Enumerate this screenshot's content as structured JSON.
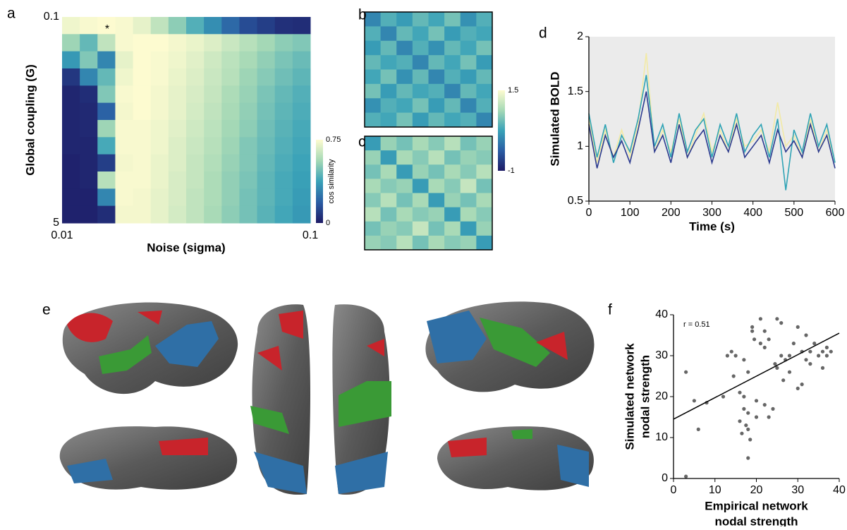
{
  "panel_e": {
    "label": "e"
  },
  "chart_data": [
    {
      "type": "heatmap",
      "panel": "a",
      "xlabel": "Noise (sigma)",
      "ylabel": "Global coupling (G)",
      "annotation": "*",
      "xlim": [
        0.01,
        0.1
      ],
      "xticks": [
        0.01,
        0.1
      ],
      "xlog": true,
      "ylim": [
        0.1,
        5
      ],
      "yticks": [
        0.1,
        5
      ],
      "clim": [
        0,
        0.75
      ],
      "colormap": [
        "#1e1b66",
        "#2a5da4",
        "#39a2b8",
        "#a5d9b6",
        "#fdfbd0"
      ],
      "colorbar": {
        "label": "cos similarity",
        "ticks": [
          0.75,
          0
        ]
      },
      "z": [
        [
          0.72,
          0.74,
          0.75,
          0.74,
          0.7,
          0.62,
          0.52,
          0.42,
          0.32,
          0.22,
          0.14,
          0.1,
          0.06,
          0.05
        ],
        [
          0.55,
          0.45,
          0.62,
          0.74,
          0.75,
          0.75,
          0.73,
          0.71,
          0.68,
          0.64,
          0.6,
          0.56,
          0.52,
          0.5
        ],
        [
          0.35,
          0.5,
          0.3,
          0.7,
          0.75,
          0.74,
          0.72,
          0.69,
          0.65,
          0.61,
          0.57,
          0.53,
          0.49,
          0.46
        ],
        [
          0.08,
          0.3,
          0.45,
          0.72,
          0.75,
          0.74,
          0.71,
          0.68,
          0.64,
          0.6,
          0.55,
          0.51,
          0.47,
          0.44
        ],
        [
          0.03,
          0.05,
          0.5,
          0.74,
          0.75,
          0.73,
          0.7,
          0.67,
          0.63,
          0.58,
          0.54,
          0.49,
          0.45,
          0.42
        ],
        [
          0.03,
          0.04,
          0.2,
          0.73,
          0.75,
          0.73,
          0.7,
          0.66,
          0.62,
          0.57,
          0.53,
          0.48,
          0.44,
          0.41
        ],
        [
          0.03,
          0.04,
          0.55,
          0.74,
          0.74,
          0.72,
          0.69,
          0.65,
          0.61,
          0.56,
          0.52,
          0.47,
          0.43,
          0.4
        ],
        [
          0.03,
          0.03,
          0.4,
          0.74,
          0.74,
          0.72,
          0.68,
          0.64,
          0.6,
          0.55,
          0.5,
          0.46,
          0.42,
          0.39
        ],
        [
          0.02,
          0.03,
          0.1,
          0.73,
          0.74,
          0.71,
          0.68,
          0.63,
          0.59,
          0.54,
          0.5,
          0.45,
          0.41,
          0.38
        ],
        [
          0.02,
          0.03,
          0.6,
          0.74,
          0.74,
          0.71,
          0.67,
          0.63,
          0.58,
          0.53,
          0.49,
          0.44,
          0.4,
          0.37
        ],
        [
          0.02,
          0.02,
          0.3,
          0.74,
          0.73,
          0.7,
          0.67,
          0.62,
          0.58,
          0.53,
          0.48,
          0.44,
          0.4,
          0.36
        ],
        [
          0.02,
          0.02,
          0.05,
          0.73,
          0.73,
          0.7,
          0.66,
          0.62,
          0.57,
          0.52,
          0.48,
          0.43,
          0.39,
          0.35
        ]
      ]
    },
    {
      "type": "matrix",
      "panel": "b",
      "clim": [
        -1,
        1.5
      ],
      "colormap": [
        "#1e1b66",
        "#2a5da4",
        "#39a2b8",
        "#a5d9b6",
        "#fdfbd0"
      ],
      "colorbar": {
        "ticks": [
          1.5,
          -1
        ]
      },
      "z": [
        [
          0,
          0.4,
          0.2,
          0.5,
          0.3,
          0.6,
          0.1,
          0.4
        ],
        [
          0.4,
          0,
          0.5,
          0.3,
          0.6,
          0.2,
          0.4,
          0.3
        ],
        [
          0.2,
          0.5,
          0,
          0.4,
          0.1,
          0.5,
          0.3,
          0.6
        ],
        [
          0.5,
          0.3,
          0.4,
          0,
          0.5,
          0.3,
          0.6,
          0.2
        ],
        [
          0.3,
          0.6,
          0.1,
          0.5,
          0,
          0.4,
          0.2,
          0.5
        ],
        [
          0.6,
          0.2,
          0.5,
          0.3,
          0.4,
          0,
          0.5,
          0.3
        ],
        [
          0.1,
          0.4,
          0.3,
          0.6,
          0.2,
          0.5,
          0,
          0.4
        ],
        [
          0.4,
          0.3,
          0.6,
          0.2,
          0.5,
          0.3,
          0.4,
          0
        ]
      ]
    },
    {
      "type": "matrix",
      "panel": "c",
      "clim": [
        -1,
        1.5
      ],
      "colormap": [
        "#1e1b66",
        "#2a5da4",
        "#39a2b8",
        "#a5d9b6",
        "#fdfbd0"
      ],
      "z": [
        [
          0.2,
          0.8,
          0.6,
          0.9,
          0.7,
          1.0,
          0.6,
          0.8
        ],
        [
          0.8,
          0.2,
          0.9,
          0.7,
          1.0,
          0.6,
          0.8,
          0.7
        ],
        [
          0.6,
          0.9,
          0.2,
          0.8,
          0.6,
          0.9,
          0.7,
          1.0
        ],
        [
          0.9,
          0.7,
          0.8,
          0.2,
          0.9,
          0.7,
          1.1,
          0.6
        ],
        [
          0.7,
          1.0,
          0.6,
          0.9,
          0.2,
          0.8,
          0.6,
          0.9
        ],
        [
          1.0,
          0.6,
          0.9,
          0.7,
          0.8,
          0.2,
          0.9,
          0.7
        ],
        [
          0.6,
          0.8,
          0.7,
          1.1,
          0.6,
          0.9,
          0.2,
          0.8
        ],
        [
          0.8,
          0.7,
          1.0,
          0.6,
          0.9,
          0.7,
          0.8,
          0.2
        ]
      ]
    },
    {
      "type": "line",
      "panel": "d",
      "xlabel": "Time (s)",
      "ylabel": "Simulated BOLD",
      "background": "#ebebeb",
      "xlim": [
        0,
        600
      ],
      "xticks": [
        0,
        100,
        200,
        300,
        400,
        500,
        600
      ],
      "ylim": [
        0.5,
        2
      ],
      "yticks": [
        0.5,
        1,
        1.5,
        2
      ],
      "x": [
        0,
        20,
        40,
        60,
        80,
        100,
        120,
        140,
        160,
        180,
        200,
        220,
        240,
        260,
        280,
        300,
        320,
        340,
        360,
        380,
        400,
        420,
        440,
        460,
        480,
        500,
        520,
        540,
        560,
        580,
        600
      ],
      "series": [
        {
          "color": "#f2eaa6",
          "values": [
            1.25,
            0.85,
            1.15,
            0.9,
            1.15,
            0.9,
            1.2,
            1.85,
            0.95,
            1.15,
            0.95,
            1.25,
            0.9,
            1.1,
            1.3,
            0.95,
            1.15,
            0.95,
            1.25,
            1.0,
            1.05,
            1.15,
            0.95,
            1.4,
            1.0,
            1.1,
            0.9,
            1.25,
            0.95,
            1.15,
            0.85
          ]
        },
        {
          "color": "#2fa3b5",
          "values": [
            1.3,
            0.9,
            1.2,
            0.85,
            1.1,
            0.95,
            1.25,
            1.65,
            1.0,
            1.2,
            0.9,
            1.3,
            0.95,
            1.15,
            1.25,
            0.9,
            1.2,
            1.0,
            1.3,
            0.95,
            1.1,
            1.2,
            0.9,
            1.25,
            0.6,
            1.15,
            0.95,
            1.3,
            1.0,
            1.2,
            0.85
          ]
        },
        {
          "color": "#2b3a8f",
          "values": [
            1.2,
            0.8,
            1.1,
            0.9,
            1.05,
            0.85,
            1.15,
            1.5,
            0.95,
            1.1,
            0.85,
            1.2,
            0.9,
            1.05,
            1.15,
            0.85,
            1.1,
            0.95,
            1.2,
            0.9,
            1.0,
            1.1,
            0.85,
            1.15,
            0.95,
            1.05,
            0.9,
            1.2,
            0.95,
            1.1,
            0.8
          ]
        }
      ]
    },
    {
      "type": "scatter",
      "panel": "f",
      "xlabel": [
        "Empirical network",
        "nodal strength"
      ],
      "ylabel": [
        "Simulated network",
        "nodal strength"
      ],
      "annotation": "r = 0.51",
      "color": "#666666",
      "xlim": [
        0,
        40
      ],
      "xticks": [
        0,
        10,
        20,
        30,
        40
      ],
      "ylim": [
        0,
        40
      ],
      "yticks": [
        0,
        10,
        20,
        30,
        40
      ],
      "trend_line": {
        "x": [
          0,
          40
        ],
        "y": [
          14.5,
          35.5
        ]
      },
      "x": [
        3,
        3,
        5,
        6,
        8,
        12,
        13,
        14,
        14.5,
        15,
        16,
        16,
        16.5,
        17,
        17,
        17,
        17.5,
        18,
        18,
        18,
        18.5,
        18,
        19,
        19,
        19.5,
        20,
        20,
        21,
        21,
        22,
        22,
        22,
        23,
        23,
        24,
        24.5,
        25,
        25,
        26,
        26,
        26.5,
        27,
        28,
        28,
        29,
        30,
        30,
        31,
        31,
        32,
        32,
        33,
        33,
        34,
        35,
        36,
        36,
        37,
        37,
        38
      ],
      "y": [
        26,
        0.5,
        19,
        12,
        18.5,
        20,
        30,
        31,
        25,
        30,
        21,
        14,
        11,
        20,
        17,
        29,
        13,
        26,
        16,
        12,
        9.5,
        5,
        36,
        37,
        34,
        19,
        15,
        33,
        39,
        36,
        32,
        18,
        34,
        15,
        17,
        28,
        39,
        27,
        38,
        30,
        24,
        29,
        30,
        26,
        33,
        37,
        22,
        31,
        23,
        29,
        35,
        31,
        28,
        33,
        30,
        31,
        27,
        32,
        30,
        31
      ]
    }
  ]
}
